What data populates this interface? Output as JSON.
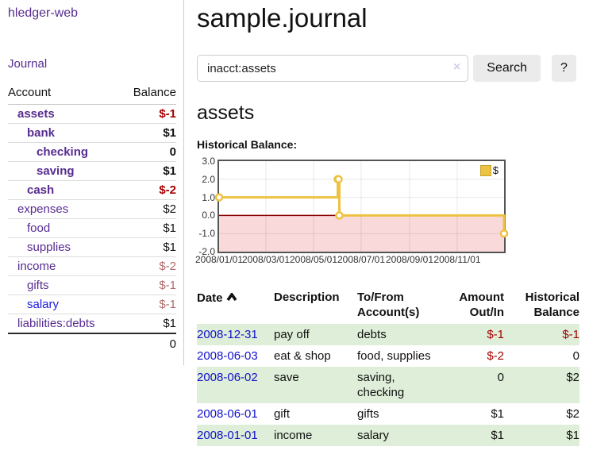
{
  "sidebar": {
    "app_title": "hledger-web",
    "nav": {
      "journal_label": "Journal"
    },
    "table": {
      "account_header": "Account",
      "balance_header": "Balance"
    },
    "accounts": [
      {
        "name": "assets",
        "indent": 1,
        "bold": true,
        "balance": "$-1",
        "negative": true
      },
      {
        "name": "bank",
        "indent": 2,
        "bold": true,
        "balance": "$1"
      },
      {
        "name": "checking",
        "indent": 3,
        "bold": true,
        "balance": "0"
      },
      {
        "name": "saving",
        "indent": 3,
        "bold": true,
        "balance": "$1"
      },
      {
        "name": "cash",
        "indent": 2,
        "bold": true,
        "balance": "$-2",
        "negative": true
      },
      {
        "name": "expenses",
        "indent": 1,
        "bold": false,
        "balance": "$2"
      },
      {
        "name": "food",
        "indent": 2,
        "bold": false,
        "balance": "$1"
      },
      {
        "name": "supplies",
        "indent": 2,
        "bold": false,
        "balance": "$1"
      },
      {
        "name": "income",
        "indent": 1,
        "bold": false,
        "balance": "$-2",
        "negative": true,
        "muted": true
      },
      {
        "name": "gifts",
        "indent": 2,
        "bold": false,
        "balance": "$-1",
        "negative": true,
        "muted": true
      },
      {
        "name": "salary",
        "indent": 2,
        "bold": false,
        "balance": "$-1",
        "negative": true,
        "muted": true,
        "unvisited": true
      },
      {
        "name": "liabilities:debts",
        "indent": 1,
        "bold": false,
        "balance": "$1"
      }
    ],
    "total": "0"
  },
  "main": {
    "title": "sample.journal",
    "search": {
      "value": "inacct:assets",
      "clear_icon": "×",
      "search_button": "Search",
      "help_button": "?"
    },
    "account_heading": "assets",
    "chart_label": "Historical Balance:"
  },
  "register": {
    "columns": [
      "Date",
      "Description",
      "To/From Account(s)",
      "Amount Out/In",
      "Historical Balance"
    ],
    "sort": "date-ascending",
    "rows": [
      {
        "date": "2008-12-31",
        "description": "pay off",
        "accounts": "debts",
        "amount": "$-1",
        "balance": "$-1",
        "amount_negative": true,
        "balance_negative": true,
        "highlight": true
      },
      {
        "date": "2008-06-03",
        "description": "eat & shop",
        "accounts": "food, supplies",
        "amount": "$-2",
        "balance": "0",
        "amount_negative": true,
        "balance_negative": false,
        "highlight": false
      },
      {
        "date": "2008-06-02",
        "description": "save",
        "accounts": "saving, checking",
        "amount": "0",
        "balance": "$2",
        "amount_negative": false,
        "balance_negative": false,
        "highlight": true
      },
      {
        "date": "2008-06-01",
        "description": "gift",
        "accounts": "gifts",
        "amount": "$1",
        "balance": "$2",
        "amount_negative": false,
        "balance_negative": false,
        "highlight": false
      },
      {
        "date": "2008-01-01",
        "description": "income",
        "accounts": "salary",
        "amount": "$1",
        "balance": "$1",
        "amount_negative": false,
        "balance_negative": false,
        "highlight": true
      }
    ]
  },
  "chart_data": {
    "type": "line",
    "title": "Historical Balance:",
    "step": true,
    "x_range": [
      "2008-01-01",
      "2008-12-31"
    ],
    "x_ticks": [
      "2008/01/01",
      "2008/03/01",
      "2008/05/01",
      "2008/07/01",
      "2008/09/01",
      "2008/11/01"
    ],
    "y_ticks": [
      3.0,
      2.0,
      1.0,
      0.0,
      -1.0,
      -2.0
    ],
    "ylim": [
      -2,
      3
    ],
    "grid": true,
    "legend_position": "top-right",
    "series": [
      {
        "name": "$",
        "color": "#edc240",
        "points": [
          {
            "date": "2008-01-01",
            "value": 1
          },
          {
            "date": "2008-06-01",
            "value": 2
          },
          {
            "date": "2008-06-02",
            "value": 2
          },
          {
            "date": "2008-06-03",
            "value": 0
          },
          {
            "date": "2008-12-31",
            "value": -1
          }
        ]
      }
    ],
    "negative_region_color": "#f9d9d9",
    "zero_line_color": "#8b0000",
    "border_color": "#545454"
  },
  "colors": {
    "visited_link_purple": "#572c90",
    "unvisited_link_blue": "#1a1add",
    "date_link_blue": "#1111cc",
    "negative_red": "#a40000",
    "muted_negative_red": "#b06a6a",
    "row_highlight_green": "#deeed9",
    "series_gold": "#edc240"
  }
}
